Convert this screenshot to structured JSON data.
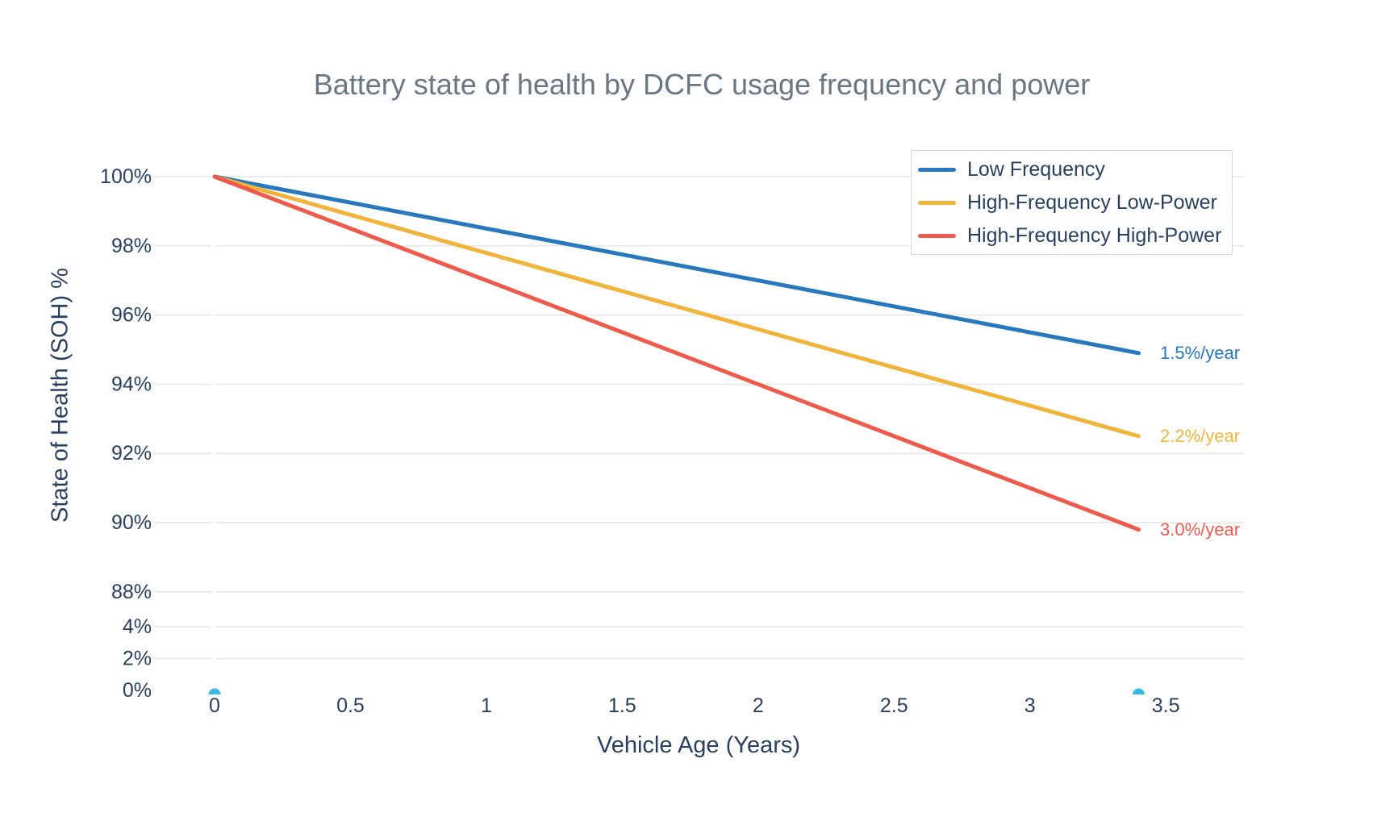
{
  "chart_data": {
    "type": "line",
    "title": "Battery state of health by DCFC usage frequency and power",
    "xlabel": "Vehicle Age (Years)",
    "ylabel": "State of Health (SOH) %",
    "legend_position": "top-right",
    "grid": "horizontal-only",
    "x_range_years": [
      0,
      3.4
    ],
    "y_axis_break": {
      "between_pct": [
        4,
        88
      ]
    },
    "xticks": [
      {
        "value": 0,
        "label": "0"
      },
      {
        "value": 0.5,
        "label": "0.5"
      },
      {
        "value": 1,
        "label": "1"
      },
      {
        "value": 1.5,
        "label": "1.5"
      },
      {
        "value": 2,
        "label": "2"
      },
      {
        "value": 2.5,
        "label": "2.5"
      },
      {
        "value": 3,
        "label": "3"
      },
      {
        "value": 3.5,
        "label": "3.5"
      }
    ],
    "yticks": [
      {
        "value": 100,
        "label": "100%"
      },
      {
        "value": 98,
        "label": "98%"
      },
      {
        "value": 96,
        "label": "96%"
      },
      {
        "value": 94,
        "label": "94%"
      },
      {
        "value": 92,
        "label": "92%"
      },
      {
        "value": 90,
        "label": "90%"
      },
      {
        "value": 88,
        "label": "88%"
      },
      {
        "value": 4,
        "label": "4%"
      },
      {
        "value": 2,
        "label": "2%"
      },
      {
        "value": 0,
        "label": "0%"
      }
    ],
    "series": [
      {
        "name": "Low Frequency",
        "color": "#2878bd",
        "degradation_pct_per_year": 1.5,
        "annotation": "1.5%/year",
        "points": [
          [
            0,
            100
          ],
          [
            3.4,
            94.9
          ]
        ]
      },
      {
        "name": "High-Frequency Low-Power",
        "color": "#f0b43c",
        "degradation_pct_per_year": 2.2,
        "annotation": "2.2%/year",
        "points": [
          [
            0,
            100
          ],
          [
            3.4,
            92.5
          ]
        ]
      },
      {
        "name": "High-Frequency High-Power",
        "color": "#ee5a4c",
        "degradation_pct_per_year": 3.0,
        "annotation": "3.0%/year",
        "points": [
          [
            0,
            100
          ],
          [
            3.4,
            89.8
          ]
        ]
      }
    ],
    "baseline_markers": {
      "color": "#38b8e8",
      "points": [
        [
          0,
          0
        ],
        [
          3.4,
          0
        ]
      ]
    },
    "colors": {
      "text": "#2a3f5f",
      "title": "#6b7683",
      "gridline": "#e6e6ea"
    }
  }
}
